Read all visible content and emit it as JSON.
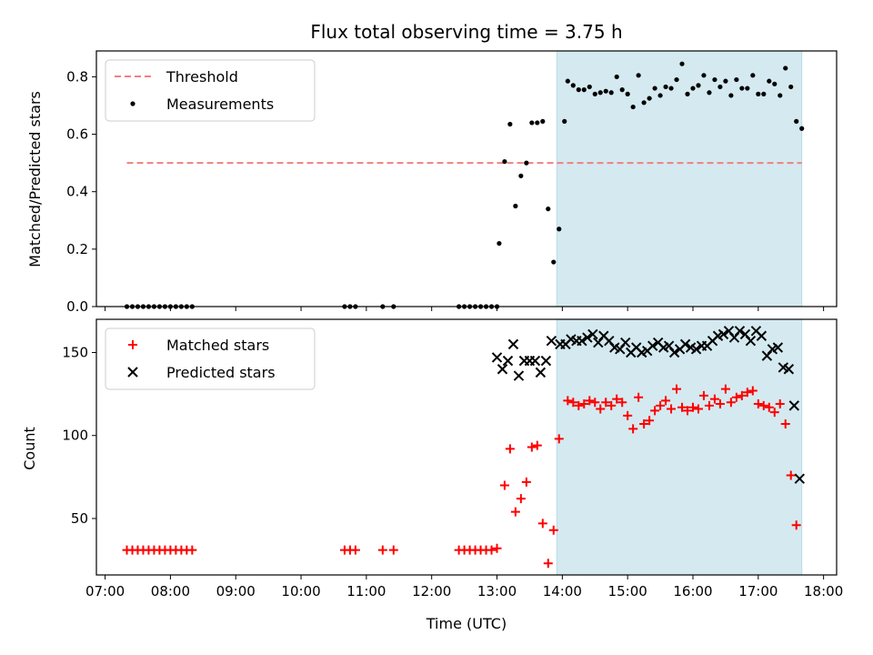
{
  "chart_data": {
    "type": "scatter",
    "title": "Flux total observing time = 3.75 h",
    "xlabel": "Time (UTC)",
    "x_unit": "hours UTC",
    "xlim": [
      "06:52",
      "18:12"
    ],
    "x_ticks": [
      "07:00",
      "08:00",
      "09:00",
      "10:00",
      "11:00",
      "12:00",
      "13:00",
      "14:00",
      "15:00",
      "16:00",
      "17:00",
      "18:00"
    ],
    "highlight_band": {
      "from": "13:55",
      "to": "17:40",
      "color": "#d4eaf0"
    },
    "grid": false,
    "panels": [
      {
        "ylabel": "Matched/Predicted stars",
        "ylim": [
          0,
          0.89
        ],
        "y_ticks": [
          "0.0",
          "0.2",
          "0.4",
          "0.6",
          "0.8"
        ],
        "legend": {
          "placement": "top-left",
          "entries": [
            "Threshold",
            "Measurements"
          ]
        },
        "series": [
          {
            "name": "Threshold",
            "style": "dashed-line",
            "color": "#f08080",
            "points": [
              [
                "07:20",
                0.5
              ],
              [
                "17:40",
                0.5
              ]
            ]
          },
          {
            "name": "Measurements",
            "style": "dot",
            "color": "#000000",
            "points": [
              [
                "07:20",
                0
              ],
              [
                "07:25",
                0
              ],
              [
                "07:30",
                0
              ],
              [
                "07:35",
                0
              ],
              [
                "07:40",
                0
              ],
              [
                "07:45",
                0
              ],
              [
                "07:50",
                0
              ],
              [
                "07:55",
                0
              ],
              [
                "08:00",
                0
              ],
              [
                "08:05",
                0
              ],
              [
                "08:10",
                0
              ],
              [
                "08:15",
                0
              ],
              [
                "08:20",
                0
              ],
              [
                "10:40",
                0
              ],
              [
                "10:45",
                0
              ],
              [
                "10:50",
                0
              ],
              [
                "11:15",
                0
              ],
              [
                "11:25",
                0
              ],
              [
                "12:25",
                0
              ],
              [
                "12:30",
                0
              ],
              [
                "12:35",
                0
              ],
              [
                "12:40",
                0
              ],
              [
                "12:45",
                0
              ],
              [
                "12:50",
                0
              ],
              [
                "12:55",
                0
              ],
              [
                "13:00",
                0
              ],
              [
                "13:02",
                0.22
              ],
              [
                "13:07",
                0.505
              ],
              [
                "13:12",
                0.635
              ],
              [
                "13:17",
                0.35
              ],
              [
                "13:22",
                0.455
              ],
              [
                "13:27",
                0.5
              ],
              [
                "13:32",
                0.64
              ],
              [
                "13:37",
                0.64
              ],
              [
                "13:42",
                0.645
              ],
              [
                "13:47",
                0.34
              ],
              [
                "13:52",
                0.155
              ],
              [
                "13:57",
                0.27
              ],
              [
                "14:02",
                0.645
              ],
              [
                "14:05",
                0.785
              ],
              [
                "14:10",
                0.77
              ],
              [
                "14:15",
                0.755
              ],
              [
                "14:20",
                0.755
              ],
              [
                "14:25",
                0.765
              ],
              [
                "14:30",
                0.74
              ],
              [
                "14:35",
                0.745
              ],
              [
                "14:40",
                0.75
              ],
              [
                "14:45",
                0.745
              ],
              [
                "14:50",
                0.8
              ],
              [
                "14:55",
                0.755
              ],
              [
                "15:00",
                0.74
              ],
              [
                "15:05",
                0.695
              ],
              [
                "15:10",
                0.805
              ],
              [
                "15:15",
                0.71
              ],
              [
                "15:20",
                0.725
              ],
              [
                "15:25",
                0.76
              ],
              [
                "15:30",
                0.735
              ],
              [
                "15:35",
                0.765
              ],
              [
                "15:40",
                0.76
              ],
              [
                "15:45",
                0.79
              ],
              [
                "15:50",
                0.845
              ],
              [
                "15:55",
                0.74
              ],
              [
                "16:00",
                0.76
              ],
              [
                "16:05",
                0.77
              ],
              [
                "16:10",
                0.805
              ],
              [
                "16:15",
                0.745
              ],
              [
                "16:20",
                0.79
              ],
              [
                "16:25",
                0.765
              ],
              [
                "16:30",
                0.785
              ],
              [
                "16:35",
                0.735
              ],
              [
                "16:40",
                0.79
              ],
              [
                "16:45",
                0.76
              ],
              [
                "16:50",
                0.76
              ],
              [
                "16:55",
                0.805
              ],
              [
                "17:00",
                0.74
              ],
              [
                "17:05",
                0.74
              ],
              [
                "17:10",
                0.785
              ],
              [
                "17:15",
                0.775
              ],
              [
                "17:20",
                0.735
              ],
              [
                "17:25",
                0.83
              ],
              [
                "17:30",
                0.765
              ],
              [
                "17:35",
                0.645
              ],
              [
                "17:40",
                0.62
              ]
            ]
          }
        ]
      },
      {
        "ylabel": "Count",
        "ylim": [
          16,
          170
        ],
        "y_ticks": [
          "50",
          "100",
          "150"
        ],
        "legend": {
          "placement": "top-left",
          "entries": [
            "Matched stars",
            "Predicted stars"
          ]
        },
        "series": [
          {
            "name": "Matched stars",
            "style": "plus",
            "color": "#ff0000",
            "points": [
              [
                "07:20",
                31
              ],
              [
                "07:25",
                31
              ],
              [
                "07:30",
                31
              ],
              [
                "07:35",
                31
              ],
              [
                "07:40",
                31
              ],
              [
                "07:45",
                31
              ],
              [
                "07:50",
                31
              ],
              [
                "07:55",
                31
              ],
              [
                "08:00",
                31
              ],
              [
                "08:05",
                31
              ],
              [
                "08:10",
                31
              ],
              [
                "08:15",
                31
              ],
              [
                "08:20",
                31
              ],
              [
                "10:40",
                31
              ],
              [
                "10:45",
                31
              ],
              [
                "10:50",
                31
              ],
              [
                "11:15",
                31
              ],
              [
                "11:25",
                31
              ],
              [
                "12:25",
                31
              ],
              [
                "12:30",
                31
              ],
              [
                "12:35",
                31
              ],
              [
                "12:40",
                31
              ],
              [
                "12:45",
                31
              ],
              [
                "12:50",
                31
              ],
              [
                "12:55",
                31
              ],
              [
                "13:00",
                32
              ],
              [
                "13:07",
                70
              ],
              [
                "13:12",
                92
              ],
              [
                "13:17",
                54
              ],
              [
                "13:22",
                62
              ],
              [
                "13:27",
                72
              ],
              [
                "13:32",
                93
              ],
              [
                "13:37",
                94
              ],
              [
                "13:42",
                47
              ],
              [
                "13:47",
                23
              ],
              [
                "13:52",
                43
              ],
              [
                "13:57",
                98
              ],
              [
                "14:05",
                121
              ],
              [
                "14:10",
                120
              ],
              [
                "14:15",
                118
              ],
              [
                "14:20",
                119
              ],
              [
                "14:25",
                121
              ],
              [
                "14:30",
                120
              ],
              [
                "14:35",
                116
              ],
              [
                "14:40",
                120
              ],
              [
                "14:45",
                118
              ],
              [
                "14:50",
                122
              ],
              [
                "14:55",
                120
              ],
              [
                "15:00",
                112
              ],
              [
                "15:05",
                104
              ],
              [
                "15:10",
                123
              ],
              [
                "15:15",
                107
              ],
              [
                "15:20",
                109
              ],
              [
                "15:25",
                115
              ],
              [
                "15:30",
                118
              ],
              [
                "15:35",
                121
              ],
              [
                "15:40",
                116
              ],
              [
                "15:45",
                128
              ],
              [
                "15:50",
                117
              ],
              [
                "15:55",
                115
              ],
              [
                "16:00",
                117
              ],
              [
                "16:05",
                116
              ],
              [
                "16:10",
                124
              ],
              [
                "16:15",
                118
              ],
              [
                "16:20",
                122
              ],
              [
                "16:25",
                119
              ],
              [
                "16:30",
                128
              ],
              [
                "16:35",
                120
              ],
              [
                "16:40",
                123
              ],
              [
                "16:45",
                124
              ],
              [
                "16:50",
                126
              ],
              [
                "16:55",
                127
              ],
              [
                "17:00",
                119
              ],
              [
                "17:05",
                118
              ],
              [
                "17:10",
                117
              ],
              [
                "17:15",
                114
              ],
              [
                "17:20",
                119
              ],
              [
                "17:25",
                107
              ],
              [
                "17:30",
                76
              ],
              [
                "17:35",
                46
              ]
            ]
          },
          {
            "name": "Predicted stars",
            "style": "x",
            "color": "#000000",
            "points": [
              [
                "13:00",
                147
              ],
              [
                "13:05",
                140
              ],
              [
                "13:10",
                145
              ],
              [
                "13:15",
                155
              ],
              [
                "13:20",
                136
              ],
              [
                "13:25",
                145
              ],
              [
                "13:30",
                145
              ],
              [
                "13:35",
                145
              ],
              [
                "13:40",
                138
              ],
              [
                "13:45",
                145
              ],
              [
                "13:50",
                157
              ],
              [
                "13:58",
                155
              ],
              [
                "14:03",
                155
              ],
              [
                "14:08",
                158
              ],
              [
                "14:13",
                157
              ],
              [
                "14:18",
                157
              ],
              [
                "14:23",
                159
              ],
              [
                "14:28",
                161
              ],
              [
                "14:33",
                156
              ],
              [
                "14:38",
                160
              ],
              [
                "14:43",
                157
              ],
              [
                "14:48",
                153
              ],
              [
                "14:53",
                152
              ],
              [
                "14:58",
                156
              ],
              [
                "15:03",
                150
              ],
              [
                "15:08",
                153
              ],
              [
                "15:13",
                150
              ],
              [
                "15:18",
                151
              ],
              [
                "15:23",
                154
              ],
              [
                "15:28",
                156
              ],
              [
                "15:33",
                153
              ],
              [
                "15:38",
                154
              ],
              [
                "15:43",
                150
              ],
              [
                "15:48",
                152
              ],
              [
                "15:53",
                155
              ],
              [
                "15:58",
                153
              ],
              [
                "16:03",
                152
              ],
              [
                "16:08",
                154
              ],
              [
                "16:13",
                154
              ],
              [
                "16:18",
                157
              ],
              [
                "16:23",
                160
              ],
              [
                "16:28",
                161
              ],
              [
                "16:33",
                163
              ],
              [
                "16:38",
                159
              ],
              [
                "16:43",
                163
              ],
              [
                "16:48",
                161
              ],
              [
                "16:53",
                157
              ],
              [
                "16:58",
                163
              ],
              [
                "17:03",
                160
              ],
              [
                "17:08",
                148
              ],
              [
                "17:13",
                152
              ],
              [
                "17:18",
                153
              ],
              [
                "17:23",
                141
              ],
              [
                "17:28",
                140
              ],
              [
                "17:33",
                118
              ],
              [
                "17:38",
                74
              ]
            ]
          }
        ]
      }
    ]
  }
}
